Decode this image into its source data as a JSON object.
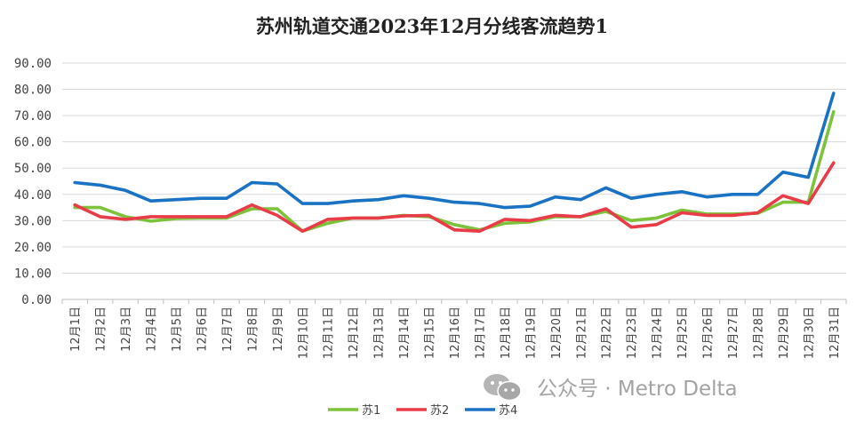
{
  "title": "苏州轨道交通2023年12月分线客流趋势1",
  "watermark": "公众号 · Metro Delta",
  "colors": {
    "s1": "#7cc23a",
    "s2": "#e93b48",
    "s4": "#1a72c4",
    "grid": "#d9d9d9",
    "axis": "#bfbfbf"
  },
  "chart_data": {
    "type": "line",
    "title": "苏州轨道交通2023年12月分线客流趋势1",
    "xlabel": "",
    "ylabel": "",
    "ylim": [
      0,
      90
    ],
    "yticks": [
      0,
      10,
      20,
      30,
      40,
      50,
      60,
      70,
      80,
      90
    ],
    "ytick_labels": [
      "0.00",
      "10.00",
      "20.00",
      "30.00",
      "40.00",
      "50.00",
      "60.00",
      "70.00",
      "80.00",
      "90.00"
    ],
    "grid": true,
    "legend_position": "bottom",
    "categories": [
      "12月1日",
      "12月2日",
      "12月3日",
      "12月4日",
      "12月5日",
      "12月6日",
      "12月7日",
      "12月8日",
      "12月9日",
      "12月10日",
      "12月11日",
      "12月12日",
      "12月13日",
      "12月14日",
      "12月15日",
      "12月16日",
      "12月17日",
      "12月18日",
      "12月19日",
      "12月20日",
      "12月21日",
      "12月22日",
      "12月23日",
      "12月24日",
      "12月25日",
      "12月26日",
      "12月27日",
      "12月28日",
      "12月29日",
      "12月30日",
      "12月31日"
    ],
    "series": [
      {
        "name": "苏1",
        "color": "#7cc23a",
        "values": [
          35.0,
          35.0,
          31.5,
          29.8,
          30.8,
          31.0,
          31.0,
          34.5,
          34.5,
          26.0,
          29.0,
          31.0,
          31.0,
          32.0,
          31.5,
          28.5,
          26.5,
          29.0,
          29.5,
          31.5,
          31.5,
          33.5,
          30.0,
          31.0,
          34.0,
          32.5,
          32.5,
          32.8,
          37.0,
          37.0,
          71.5
        ]
      },
      {
        "name": "苏2",
        "color": "#e93b48",
        "values": [
          36.0,
          31.5,
          30.5,
          31.5,
          31.5,
          31.5,
          31.5,
          36.0,
          32.0,
          26.0,
          30.5,
          31.0,
          31.0,
          31.8,
          32.0,
          26.5,
          26.0,
          30.5,
          30.0,
          32.0,
          31.5,
          34.5,
          27.5,
          28.5,
          33.0,
          32.0,
          32.0,
          33.0,
          39.5,
          36.5,
          52.0
        ]
      },
      {
        "name": "苏4",
        "color": "#1a72c4",
        "values": [
          44.5,
          43.5,
          41.5,
          37.5,
          38.0,
          38.5,
          38.5,
          44.5,
          44.0,
          36.5,
          36.5,
          37.5,
          38.0,
          39.5,
          38.5,
          37.0,
          36.5,
          35.0,
          35.5,
          39.0,
          38.0,
          42.5,
          38.5,
          40.0,
          41.0,
          39.0,
          40.0,
          40.0,
          48.5,
          46.5,
          78.5
        ]
      }
    ]
  }
}
